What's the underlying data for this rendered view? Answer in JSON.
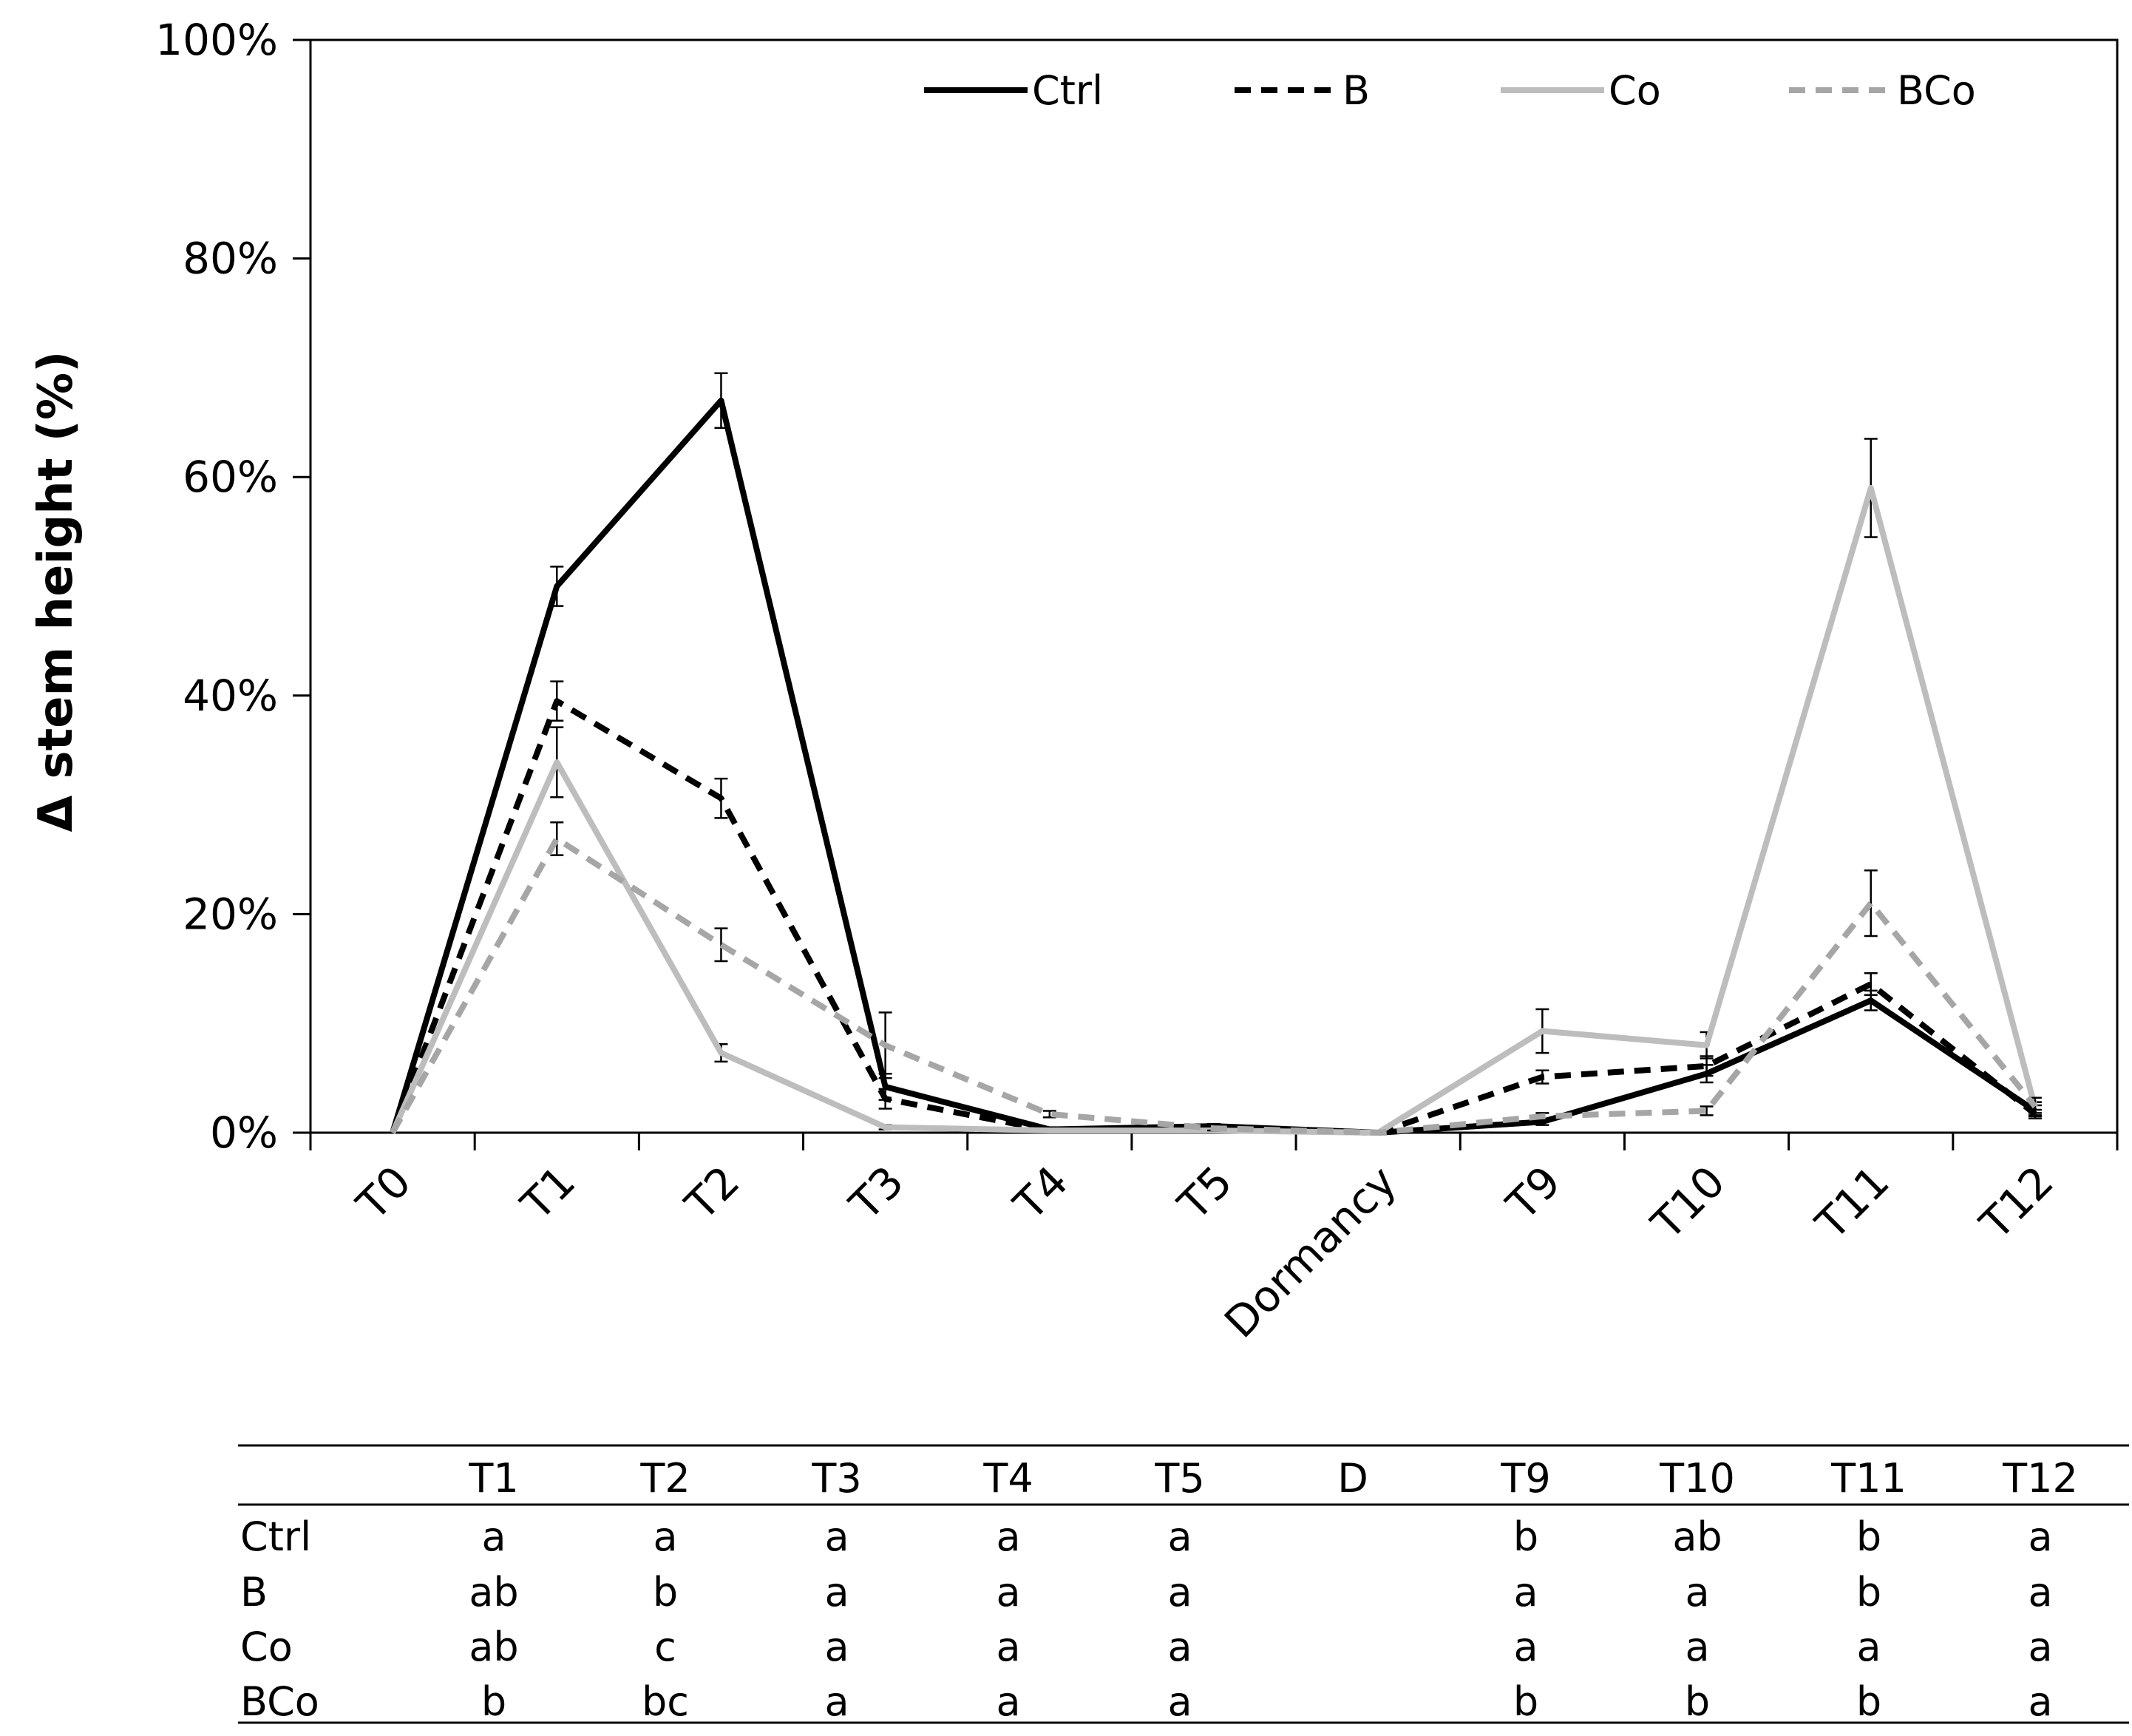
{
  "chart_data": {
    "type": "line",
    "title": "",
    "xlabel": "",
    "ylabel": "Δ stem height (%)",
    "ylim": [
      0,
      100
    ],
    "ytick_labels": [
      "0%",
      "20%",
      "40%",
      "60%",
      "80%",
      "100%"
    ],
    "ytick_values": [
      0,
      20,
      40,
      60,
      80,
      100
    ],
    "grid": false,
    "legend_position": "top",
    "categories": [
      "T0",
      "T1",
      "T2",
      "T3",
      "T4",
      "T5",
      "Dormancy",
      "T9",
      "T10",
      "T11",
      "T12"
    ],
    "series": [
      {
        "name": "Ctrl",
        "color": "#000000",
        "style": "solid",
        "values": [
          0,
          50.0,
          67.0,
          4.2,
          0.3,
          0.6,
          0,
          1.0,
          5.4,
          12.1,
          2.0
        ],
        "errors": [
          0,
          1.8,
          2.5,
          1.2,
          0.2,
          0.2,
          0,
          0.3,
          0.8,
          0.9,
          0.5
        ]
      },
      {
        "name": "B",
        "color": "#000000",
        "style": "dashed",
        "values": [
          0,
          39.5,
          30.6,
          3.1,
          0.2,
          0.3,
          0,
          5.1,
          6.1,
          13.6,
          1.7
        ],
        "errors": [
          0,
          1.8,
          1.8,
          0.9,
          0.2,
          0.2,
          0,
          0.6,
          0.9,
          1.0,
          0.4
        ]
      },
      {
        "name": "Co",
        "color": "#bdbdbd",
        "style": "solid",
        "values": [
          0,
          33.9,
          7.3,
          0.5,
          0.2,
          0.2,
          0,
          9.3,
          8.0,
          59.0,
          2.3
        ],
        "errors": [
          0,
          3.2,
          0.8,
          0.2,
          0.1,
          0.1,
          0,
          2.0,
          1.2,
          4.5,
          0.5
        ]
      },
      {
        "name": "BCo",
        "color": "#a6a6a6",
        "style": "dashed",
        "values": [
          0,
          26.9,
          17.2,
          8.0,
          1.7,
          0.4,
          0,
          1.5,
          2.0,
          21.0,
          2.4
        ],
        "errors": [
          0,
          1.5,
          1.5,
          3.0,
          0.3,
          0.2,
          0,
          0.3,
          0.4,
          3.0,
          0.8
        ]
      }
    ]
  },
  "significance_table": {
    "columns": [
      "T1",
      "T2",
      "T3",
      "T4",
      "T5",
      "D",
      "T9",
      "T10",
      "T11",
      "T12"
    ],
    "rows": [
      {
        "label": "Ctrl",
        "cells": [
          "a",
          "a",
          "a",
          "a",
          "a",
          "",
          "b",
          "ab",
          "b",
          "a"
        ]
      },
      {
        "label": "B",
        "cells": [
          "ab",
          "b",
          "a",
          "a",
          "a",
          "",
          "a",
          "a",
          "b",
          "a"
        ]
      },
      {
        "label": "Co",
        "cells": [
          "ab",
          "c",
          "a",
          "a",
          "a",
          "",
          "a",
          "a",
          "a",
          "a"
        ]
      },
      {
        "label": "BCo",
        "cells": [
          "b",
          "bc",
          "a",
          "a",
          "a",
          "",
          "b",
          "b",
          "b",
          "a"
        ]
      }
    ]
  }
}
